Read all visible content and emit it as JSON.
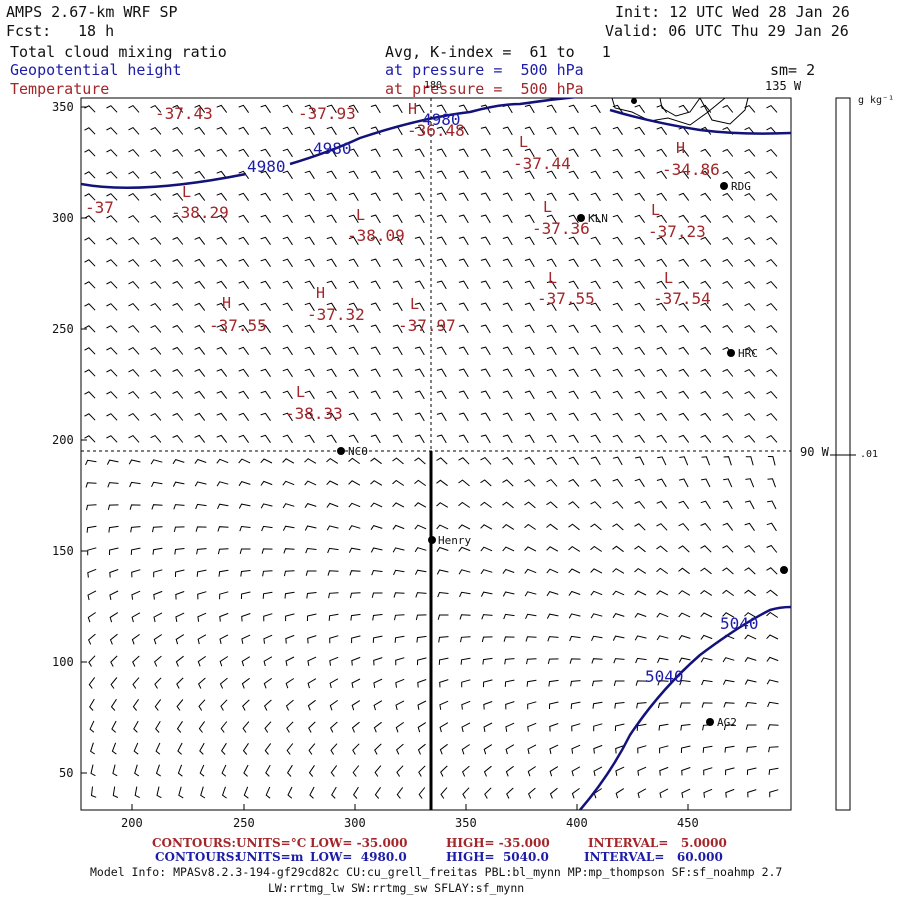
{
  "header": {
    "model": "AMPS 2.67-km WRF SP",
    "fcst_label": "Fcst:",
    "fcst_value": "18 h",
    "init": "Init: 12 UTC Wed 28 Jan 26",
    "valid": "Valid: 06 UTC Thu 29 Jan 26",
    "field1": "Total cloud mixing ratio",
    "field2": "Geopotential height",
    "field3": "Temperature",
    "avg": "Avg, K-index =  61 to   1",
    "pressure1": "at pressure =  500 hPa",
    "pressure2": "at pressure =  500 hPa",
    "sm": "sm= 2"
  },
  "axes": {
    "x_ticks": [
      "200",
      "250",
      "300",
      "350",
      "400",
      "450"
    ],
    "y_ticks": [
      "350",
      "300",
      "250",
      "200",
      "150",
      "100",
      "50"
    ],
    "lon_top": "180",
    "lon_135": "135 W",
    "lon_90": "90 W"
  },
  "colorbar": {
    "unit": "g kg⁻¹",
    "tick": ".01"
  },
  "contours_height": {
    "labels": [
      "4980",
      "4980",
      "4980",
      "5040",
      "5040"
    ]
  },
  "temperature_labels": [
    {
      "hl": "",
      "val": "-37.43"
    },
    {
      "hl": "",
      "val": "-37.93"
    },
    {
      "hl": "H",
      "val": "-36.48"
    },
    {
      "hl": "L",
      "val": "-37.44"
    },
    {
      "hl": "H",
      "val": "-34.86"
    },
    {
      "hl": "L",
      "val": "-38.29"
    },
    {
      "hl": "",
      "val": "-37"
    },
    {
      "hl": "L",
      "val": "-38.09"
    },
    {
      "hl": "L",
      "val": "-37.36"
    },
    {
      "hl": "L",
      "val": "-37.23"
    },
    {
      "hl": "H",
      "val": "-37.55"
    },
    {
      "hl": "H",
      "val": "-37.32"
    },
    {
      "hl": "L",
      "val": "-37.97"
    },
    {
      "hl": "L",
      "val": "-37.55"
    },
    {
      "hl": "L",
      "val": "-37.54"
    },
    {
      "hl": "L",
      "val": "-38.33"
    }
  ],
  "stations": [
    "RDG",
    "KLN",
    "HRC",
    "NCO",
    "Henry",
    "AG2"
  ],
  "footer": {
    "contours_label": "CONTOURS:",
    "temp_units": "UNITS=°C",
    "temp_low": "LOW= -35.000",
    "temp_high": "HIGH= -35.000",
    "temp_interval": "INTERVAL=   5.0000",
    "hgt_units": "UNITS=m",
    "hgt_low": "LOW=  4980.0",
    "hgt_high": "HIGH=  5040.0",
    "hgt_interval": "INTERVAL=   60.000",
    "model_info": "Model Info: MPASv8.2.3-194-gf29cd82c CU:cu_grell_freitas PBL:bl_mynn MP:mp_thompson SF:sf_noahmp 2.7",
    "model_info2": "LW:rrtmg_lw SW:rrtmg_sw SFLAY:sf_mynn"
  },
  "colors": {
    "height_contour": "#12127a",
    "temperature_text": "#a3262a",
    "barb": "#000000"
  }
}
